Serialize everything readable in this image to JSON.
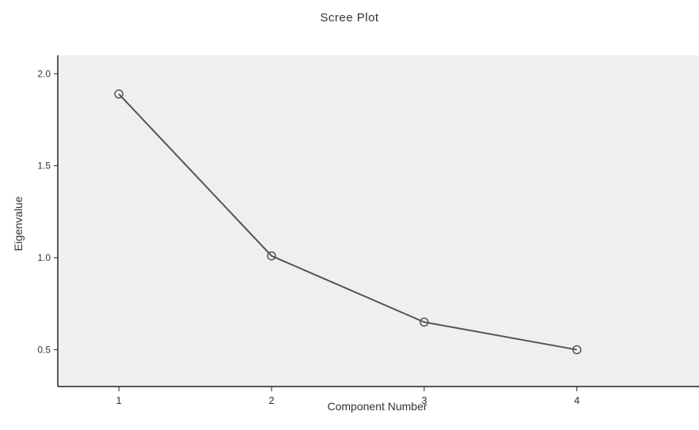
{
  "chart_data": {
    "type": "line",
    "title": "Scree Plot",
    "xlabel": "Component Number",
    "ylabel": "Eigenvalue",
    "x": [
      1,
      2,
      3,
      4
    ],
    "x_tick_labels": [
      "1",
      "2",
      "3",
      "4"
    ],
    "y_ticks": [
      0.5,
      1.0,
      1.5,
      2.0
    ],
    "y_tick_labels": [
      "0.5",
      "1.0",
      "1.5",
      "2.0"
    ],
    "values": [
      1.89,
      1.01,
      0.65,
      0.5
    ],
    "xlim": [
      0.6,
      4.8
    ],
    "ylim": [
      0.3,
      2.1
    ],
    "grid": false,
    "plot_background": "#efefef",
    "line_color": "#555555"
  }
}
